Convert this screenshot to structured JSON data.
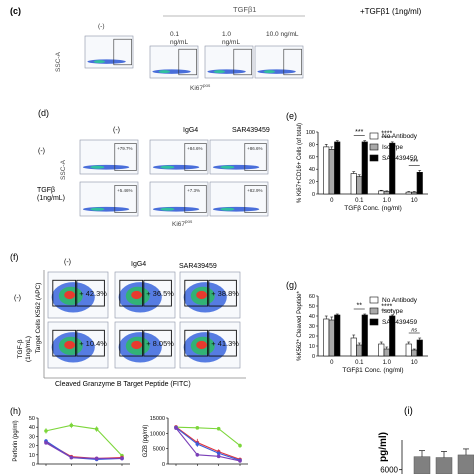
{
  "panels": {
    "c": {
      "label": "(c)",
      "side_title": "+TGFβ1 (1ng/ml)",
      "group_title": "TGFβ1",
      "sub_labels": [
        "(-)",
        "0.1\nng/mL",
        "1.0\nng/mL",
        "10.0 ng/mL"
      ],
      "y_axis": "SSC-A",
      "x_axis": "Ki67",
      "x_axis_sup": "pos"
    },
    "d": {
      "label": "(d)",
      "col_labels": [
        "(-)",
        "IgG4",
        "SAR439459"
      ],
      "row_labels": [
        "(-)",
        "TGFβ\n(1ng/mL)"
      ],
      "y_axis": "SSC-A",
      "x_axis": "Ki67",
      "x_axis_sup": "pos",
      "percents": [
        "+79.7%",
        "+84.6%",
        "+86.6%",
        "+5.46%",
        "+7.3%",
        "+82.9%"
      ]
    },
    "f": {
      "label": "(f)",
      "col_labels": [
        "(-)",
        "IgG4",
        "SAR439459"
      ],
      "row_labels": [
        "(-)",
        "TGF-β\n(1ng/mL)"
      ],
      "y_axis": "Target Cells K562 (APC)",
      "x_axis": "Cleaved Granzyme B Target Peptide (FITC)",
      "percents": [
        "+ 42.3%",
        "+ 36.5%",
        "+ 38.8%",
        "+ 10.4%",
        "+ 8.05%",
        "+ 41.3%"
      ]
    },
    "h": {
      "label": "(h)"
    },
    "i": {
      "label": "(i)",
      "ylabel_fragment": "pg/ml)",
      "tick": "6000"
    }
  },
  "colors": {
    "no_antibody": "#ffffff",
    "isotype": "#a9a9a9",
    "sar": "#000000",
    "flow_blue": "#1f4fd1",
    "green": "#7cd63a",
    "purple": "#7a3fb8",
    "red": "#e0343c",
    "blue": "#3a5bd9"
  },
  "chart_data": [
    {
      "panel": "e",
      "type": "bar",
      "xlabel": "TGFβ Conc. (ng/ml)",
      "ylabel": "% Ki67+CD16+ Cells (of total)",
      "categories": [
        "0",
        "0.1",
        "1.0",
        "10"
      ],
      "ylim": [
        0,
        100
      ],
      "yticks": [
        0,
        20,
        40,
        60,
        80,
        100
      ],
      "series": [
        {
          "name": "No Antibody",
          "color": "#ffffff",
          "values": [
            76,
            33,
            5,
            3
          ],
          "err": [
            4,
            3,
            1,
            1
          ]
        },
        {
          "name": "Isotype",
          "color": "#a9a9a9",
          "values": [
            72,
            28,
            4,
            3
          ],
          "err": [
            4,
            3,
            1,
            1
          ]
        },
        {
          "name": "SAR439459",
          "color": "#000000",
          "values": [
            84,
            84,
            82,
            35
          ],
          "err": [
            2,
            2,
            2,
            3
          ]
        }
      ],
      "significance": [
        {
          "category": "0.1",
          "text": "***"
        },
        {
          "category": "1.0",
          "text": "****"
        },
        {
          "category": "10",
          "text": "***"
        }
      ],
      "legend_position": "top-right"
    },
    {
      "panel": "g",
      "type": "bar",
      "xlabel": "TGFβ1 Conc. (ng/ml)",
      "ylabel": "%K562* Cleaved Peptide*",
      "categories": [
        "0",
        "0.1",
        "1.0",
        "10"
      ],
      "ylim": [
        0,
        60
      ],
      "yticks": [
        0,
        10,
        20,
        30,
        40,
        50,
        60
      ],
      "series": [
        {
          "name": "No Antibody",
          "color": "#ffffff",
          "values": [
            37,
            18,
            12,
            12
          ],
          "err": [
            3,
            3,
            2,
            2
          ]
        },
        {
          "name": "Isotype",
          "color": "#a9a9a9",
          "values": [
            36,
            11,
            7,
            6
          ],
          "err": [
            3,
            2,
            2,
            1
          ]
        },
        {
          "name": "SAR439459",
          "color": "#000000",
          "values": [
            41,
            41,
            40,
            16
          ],
          "err": [
            1,
            1,
            1,
            2
          ]
        }
      ],
      "significance": [
        {
          "category": "0.1",
          "text": "**"
        },
        {
          "category": "1.0",
          "text": "****"
        },
        {
          "category": "10",
          "text": "ns"
        }
      ],
      "legend_position": "top-right"
    },
    {
      "panel": "h-left",
      "type": "line",
      "ylabel": "Perforin (pg/ml)",
      "ylim": [
        0,
        50
      ],
      "yticks": [
        0,
        10,
        20,
        30,
        40,
        50
      ],
      "x": [
        0,
        1,
        2,
        3
      ],
      "series": [
        {
          "color": "#7cd63a",
          "values": [
            36,
            42,
            38,
            9
          ],
          "err": [
            3,
            3,
            3,
            2
          ]
        },
        {
          "color": "#e0343c",
          "values": [
            24,
            8,
            6,
            7
          ],
          "err": [
            2,
            1,
            1,
            1
          ]
        },
        {
          "color": "#3a5bd9",
          "values": [
            25,
            7,
            5,
            6
          ],
          "err": [
            2,
            1,
            1,
            1
          ]
        },
        {
          "color": "#7a3fb8",
          "values": [
            23,
            7,
            6,
            6
          ],
          "err": [
            2,
            1,
            1,
            1
          ]
        }
      ]
    },
    {
      "panel": "h-right",
      "type": "line",
      "ylabel": "GZB (pg/ml)",
      "ylim": [
        0,
        15000
      ],
      "yticks": [
        0,
        5000,
        10000,
        15000
      ],
      "x": [
        0,
        1,
        2,
        3
      ],
      "series": [
        {
          "color": "#7cd63a",
          "values": [
            12000,
            11800,
            11500,
            6000
          ],
          "err": [
            400,
            400,
            400,
            700
          ]
        },
        {
          "color": "#e0343c",
          "values": [
            12100,
            7000,
            4000,
            1500
          ],
          "err": [
            400,
            1200,
            800,
            300
          ]
        },
        {
          "color": "#3a5bd9",
          "values": [
            11900,
            6500,
            3500,
            1200
          ],
          "err": [
            400,
            900,
            600,
            300
          ]
        },
        {
          "color": "#7a3fb8",
          "values": [
            11700,
            3000,
            2500,
            1000
          ],
          "err": [
            400,
            600,
            500,
            300
          ]
        }
      ]
    },
    {
      "panel": "i",
      "type": "bar",
      "values": [
        7500,
        7400,
        7700
      ],
      "ytick_visible": 6000
    }
  ]
}
